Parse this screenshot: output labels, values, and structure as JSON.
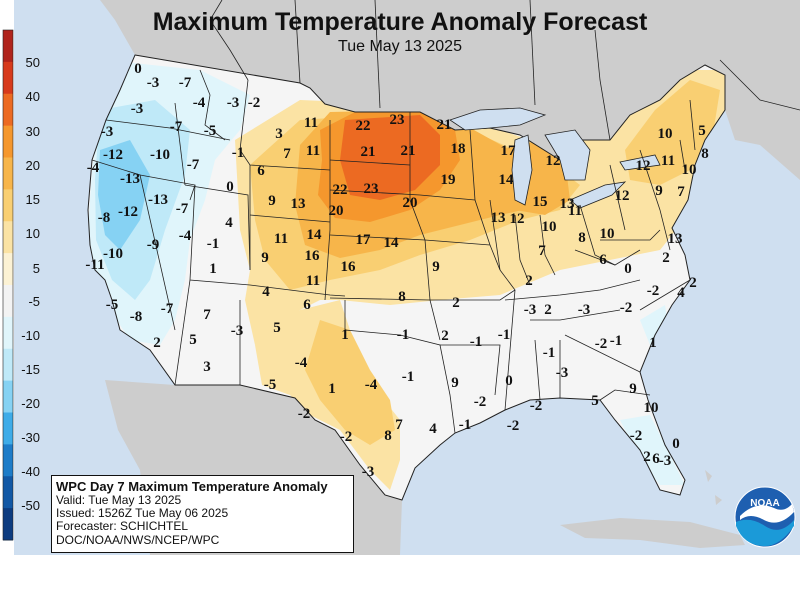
{
  "header": {
    "title": "Maximum Temperature Anomaly Forecast",
    "subtitle": "Tue May 13 2025"
  },
  "info_box": {
    "line1": "WPC Day 7 Maximum Temperature Anomaly",
    "line2": "Valid: Tue May 13 2025",
    "line3": "Issued: 1526Z Tue May 06 2025",
    "line4": "Forecaster: SCHICHTEL",
    "line5": "DOC/NOAA/NWS/NCEP/WPC"
  },
  "logo_text": "NOAA",
  "colors": {
    "ocean": "#cfdff0",
    "foreign_land": "#cdcdcd",
    "neutral_land": "#f5f5f5",
    "boundary": "#222222"
  },
  "legend": {
    "labels": [
      "50",
      "40",
      "30",
      "20",
      "15",
      "10",
      "5",
      "-5",
      "-10",
      "-15",
      "-20",
      "-30",
      "-40",
      "-50"
    ],
    "colors": [
      "#b0241c",
      "#d73a1c",
      "#ec6a22",
      "#f5972d",
      "#f7b54a",
      "#f9cf72",
      "#fbe3a4",
      "#fcf2d4",
      "#f3f3f3",
      "#e0f5fb",
      "#bfe9f8",
      "#86d2f3",
      "#3eace8",
      "#1d7cc8",
      "#1258a5",
      "#0d3c80"
    ]
  },
  "anomaly_labels": [
    "0",
    "-3",
    "-7",
    "-4",
    "-3",
    "-2",
    "-3",
    "-7",
    "-5",
    "3",
    "11",
    "22",
    "23",
    "21",
    "10",
    "-3",
    "-12",
    "-10",
    "-1",
    "7",
    "11",
    "21",
    "21",
    "18",
    "17",
    "5",
    "-7",
    "-4",
    "-13",
    "6",
    "22",
    "23",
    "12",
    "11",
    "8",
    "0",
    "9",
    "13",
    "19",
    "14",
    "12",
    "10",
    "-13",
    "-7",
    "20",
    "20",
    "15",
    "9",
    "7",
    "-8",
    "-12",
    "4",
    "14",
    "13",
    "12",
    "13",
    "12",
    "11",
    "-1",
    "11",
    "17",
    "14",
    "10",
    "-9",
    "-4",
    "8",
    "10",
    "13",
    "-10",
    "9",
    "16",
    "16",
    "9",
    "7",
    "2",
    "-11",
    "1",
    "6",
    "2",
    "0",
    "2",
    "-5",
    "-8",
    "4",
    "11",
    "8",
    "-7",
    "6",
    "2",
    "2",
    "-3",
    "7",
    "5",
    "2",
    "-1",
    "-1",
    "-3",
    "-2",
    "-2",
    "4",
    "-3",
    "1",
    "-1",
    "2",
    "5",
    "1",
    "-1",
    "3",
    "-4",
    "-2",
    "-1",
    "-3",
    "-1",
    "0",
    "9",
    "9",
    "1",
    "-4",
    "-5",
    "-2",
    "5",
    "-2",
    "-2",
    "10",
    "-2",
    "-2",
    "8",
    "7",
    "4",
    "-1",
    "-2",
    "2",
    "6",
    "0",
    "-3",
    "-3"
  ]
}
